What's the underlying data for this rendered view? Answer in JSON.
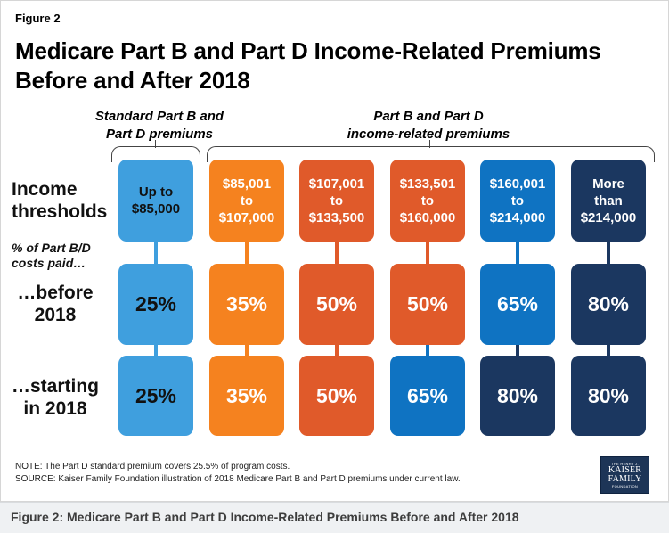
{
  "figure": {
    "label": "Figure 2",
    "title_line1": "Medicare Part B and Part D Income-Related Premiums",
    "title_line2": "Before and After 2018"
  },
  "groups": {
    "standard_line1": "Standard Part B and",
    "standard_line2": "Part D premiums",
    "income_line1": "Part B and Part D",
    "income_line2": "income-related premiums"
  },
  "row_labels": {
    "income_line1": "Income",
    "income_line2": "thresholds",
    "pct_line1": "% of Part B/D",
    "pct_line2": "costs paid…",
    "before_line1": "…before",
    "before_line2": "2018",
    "starting_line1": "…starting",
    "starting_line2": "in 2018"
  },
  "columns": [
    {
      "threshold": "Up to\n$85,000",
      "before": "25%",
      "starting": "25%"
    },
    {
      "threshold": "$85,001\nto\n$107,000",
      "before": "35%",
      "starting": "35%"
    },
    {
      "threshold": "$107,001\nto\n$133,500",
      "before": "50%",
      "starting": "50%"
    },
    {
      "threshold": "$133,501\nto\n$160,000",
      "before": "50%",
      "starting": "65%"
    },
    {
      "threshold": "$160,001\nto\n$214,000",
      "before": "65%",
      "starting": "80%"
    },
    {
      "threshold": "More\nthan\n$214,000",
      "before": "80%",
      "starting": "80%"
    }
  ],
  "colors": {
    "tier_25": "#3f9fde",
    "tier_35": "#f5821f",
    "tier_50": "#e05a2a",
    "tier_65": "#0f73c2",
    "tier_80": "#1b3760"
  },
  "notes": {
    "note": "NOTE: The Part D standard premium covers 25.5% of program costs.",
    "source": "SOURCE: Kaiser Family Foundation illustration of 2018 Medicare Part B and Part D premiums under current law."
  },
  "logo": {
    "line1": "THE HENRY J.",
    "line2": "KAISER",
    "line3": "FAMILY",
    "line4": "FOUNDATION"
  },
  "caption": "Figure 2: Medicare Part B and Part D Income-Related Premiums Before and After 2018"
}
